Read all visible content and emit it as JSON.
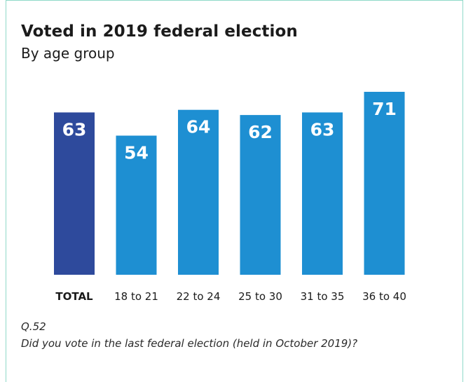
{
  "header": {
    "title": "Voted in 2019 federal election",
    "subtitle": "By age group"
  },
  "footnote": {
    "question_id": "Q.52",
    "question_text": "Did you vote in the last federal election (held in October 2019)?"
  },
  "colors": {
    "total_bar": "#2e4a9c",
    "group_bar": "#1e8fd2",
    "frame": "#8fd9c8"
  },
  "chart_data": {
    "type": "bar",
    "title": "Voted in 2019 federal election",
    "subtitle": "By age group",
    "categories": [
      "TOTAL",
      "18 to 21",
      "22 to 24",
      "25 to 30",
      "31 to 35",
      "36 to 40"
    ],
    "values": [
      63,
      54,
      64,
      62,
      63,
      71
    ],
    "ylim": [
      0,
      71
    ],
    "grid": false,
    "data_labels": true,
    "highlighted_category": "TOTAL"
  }
}
